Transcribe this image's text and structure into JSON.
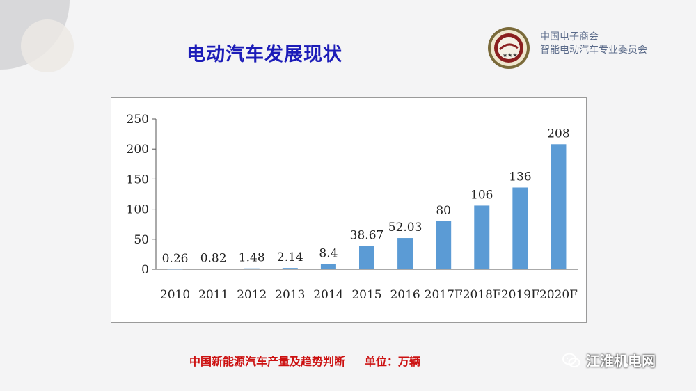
{
  "slide": {
    "title": "电动汽车发展现状",
    "org_line1": "中国电子商会",
    "org_line2": "智能电动汽车专业委员会",
    "caption": "中国新能源汽车产量及趋势判断     单位：万辆",
    "watermark": "江淮机电网"
  },
  "colors": {
    "bar": "#5b9bd5",
    "title": "#1c1cb8",
    "caption": "#cc1111"
  },
  "chart_data": {
    "type": "bar",
    "categories": [
      "2010",
      "2011",
      "2012",
      "2013",
      "2014",
      "2015",
      "2016",
      "2017F",
      "2018F",
      "2019F",
      "2020F"
    ],
    "values": [
      0.26,
      0.82,
      1.48,
      2.14,
      8.4,
      38.67,
      52.03,
      80,
      106,
      136,
      208
    ],
    "value_labels": [
      "0.26",
      "0.82",
      "1.48",
      "2.14",
      "8.4",
      "38.67",
      "52.03",
      "80",
      "106",
      "136",
      "208"
    ],
    "yticks": [
      0,
      50,
      100,
      150,
      200,
      250
    ],
    "ylim": [
      0,
      250
    ],
    "grid": false,
    "legend": "none"
  }
}
